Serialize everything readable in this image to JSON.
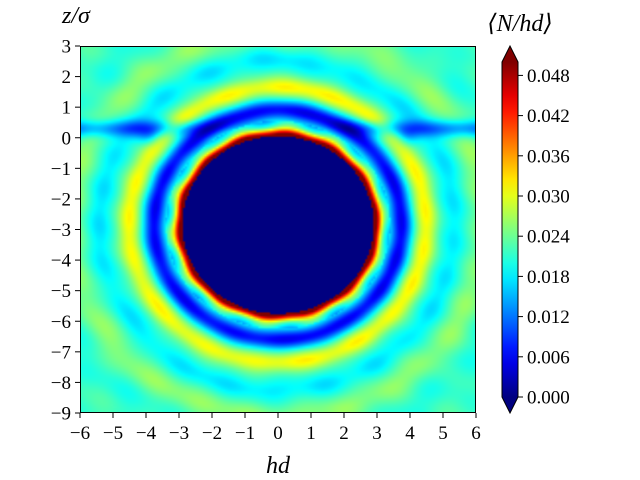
{
  "chart_data": {
    "type": "heatmap",
    "xlabel": "hd",
    "ylabel": "z/σ",
    "colorbar_label": "⟨N/hd⟩",
    "xlim": [
      -6,
      6
    ],
    "ylim": [
      -9,
      3
    ],
    "x_ticks": [
      -6,
      -5,
      -4,
      -3,
      -2,
      -1,
      0,
      1,
      2,
      3,
      4,
      5,
      6
    ],
    "x_tick_labels": [
      "−6",
      "−5",
      "−4",
      "−3",
      "−2",
      "−1",
      "0",
      "1",
      "2",
      "3",
      "4",
      "5",
      "6"
    ],
    "y_ticks": [
      3,
      2,
      1,
      0,
      -1,
      -2,
      -3,
      -4,
      -5,
      -6,
      -7,
      -8,
      -9
    ],
    "y_tick_labels": [
      "3",
      "2",
      "1",
      "0",
      "−1",
      "−2",
      "−3",
      "−4",
      "−5",
      "−6",
      "−7",
      "−8",
      "−9"
    ],
    "clim": [
      0.0,
      0.05
    ],
    "colorbar_ticks": [
      0.048,
      0.042,
      0.036,
      0.03,
      0.024,
      0.018,
      0.012,
      0.006,
      0.0
    ],
    "colorbar_tick_labels": [
      "0.048",
      "0.042",
      "0.036",
      "0.030",
      "0.024",
      "0.018",
      "0.012",
      "0.006",
      "0.000"
    ],
    "colorbar_extend": "both",
    "colormap": "jet",
    "features": {
      "excluded_disk": {
        "center": [
          0,
          -2.85
        ],
        "radius": 2.9,
        "value": 0.0
      },
      "contact_ring_value": 0.05,
      "bulk_value": 0.022,
      "wall_layer_z": 0.3
    }
  }
}
